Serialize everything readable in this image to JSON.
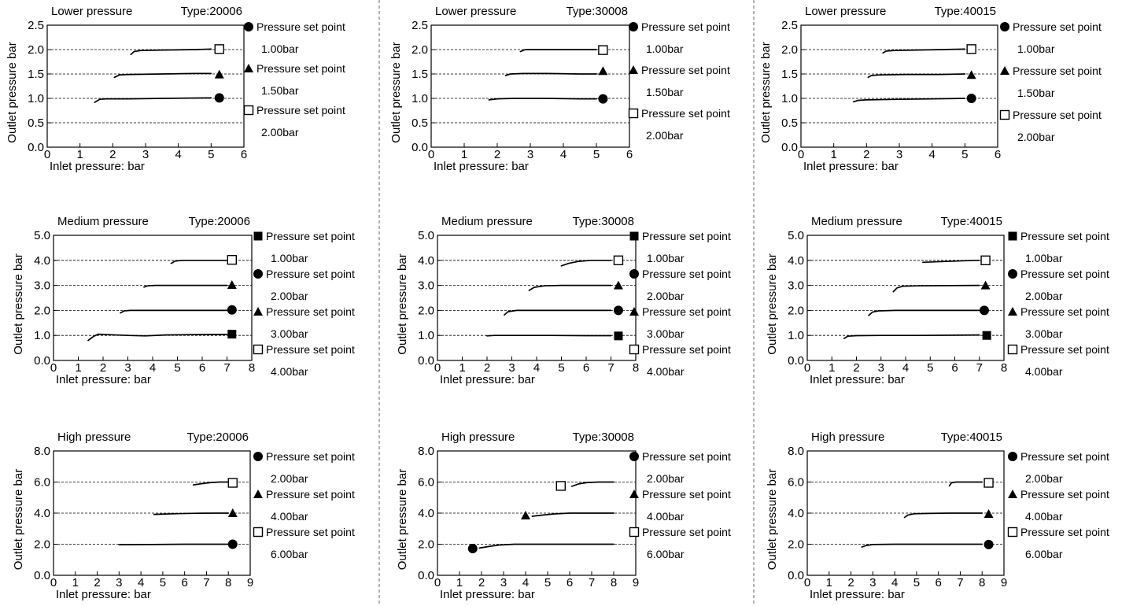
{
  "colors": {
    "line": "#000000",
    "grid": "#000000",
    "background": "#ffffff"
  },
  "chart_data": [
    {
      "type": "line",
      "title": "Lower pressure",
      "subtitle": "Type:20006",
      "xlabel": "Inlet pressure: bar",
      "ylabel": "Outlet pressure  bar",
      "xlim": [
        0,
        6
      ],
      "ylim": [
        0,
        2.5
      ],
      "xticks": [
        "0",
        "1",
        "2",
        "3",
        "4",
        "5",
        "6"
      ],
      "yticks": [
        "0.0",
        "0.5",
        "1.0",
        "1.5",
        "2.0",
        "2.5"
      ],
      "grid": "dashed horizontal at y ticks",
      "legend_placement": "right",
      "series": [
        {
          "name": "Pressure set point",
          "setpoint": "1.00bar",
          "marker": "filled-circle",
          "x": [
            1.45,
            1.6,
            1.8,
            2.5,
            3.5,
            5.0
          ],
          "y": [
            0.92,
            0.98,
            0.99,
            0.99,
            1.0,
            1.01
          ],
          "marker_xy": [
            5.25,
            1.01
          ]
        },
        {
          "name": "Pressure set point",
          "setpoint": "1.50bar",
          "marker": "filled-triangle",
          "x": [
            2.05,
            2.2,
            2.5,
            3.5,
            4.5,
            5.0
          ],
          "y": [
            1.43,
            1.48,
            1.49,
            1.5,
            1.51,
            1.51
          ],
          "marker_xy": [
            5.25,
            1.49
          ]
        },
        {
          "name": "Pressure set point",
          "setpoint": "2.00bar",
          "marker": "open-square",
          "x": [
            2.55,
            2.65,
            2.85,
            3.5,
            4.5,
            5.0
          ],
          "y": [
            1.9,
            1.96,
            1.98,
            1.99,
            2.0,
            2.01
          ],
          "marker_xy": [
            5.25,
            2.01
          ]
        }
      ]
    },
    {
      "type": "line",
      "title": "Lower pressure",
      "subtitle": "Type:30008",
      "xlabel": "Inlet pressure: bar",
      "ylabel": "Outlet pressure  bar",
      "xlim": [
        0,
        6
      ],
      "ylim": [
        0,
        2.5
      ],
      "xticks": [
        "0",
        "1",
        "2",
        "3",
        "4",
        "5",
        "6"
      ],
      "yticks": [
        "0.0",
        "0.5",
        "1.0",
        "1.5",
        "2.0",
        "2.5"
      ],
      "grid": "dashed horizontal at y ticks",
      "legend_placement": "right",
      "series": [
        {
          "name": "Pressure set point",
          "setpoint": "1.00bar",
          "marker": "filled-circle",
          "x": [
            1.75,
            2.0,
            2.5,
            3.5,
            4.5,
            5.0
          ],
          "y": [
            0.97,
            0.99,
            1.0,
            1.0,
            0.99,
            0.99
          ],
          "marker_xy": [
            5.2,
            0.99
          ]
        },
        {
          "name": "Pressure set point",
          "setpoint": "1.50bar",
          "marker": "filled-triangle",
          "x": [
            2.25,
            2.4,
            2.8,
            3.5,
            4.5,
            5.0
          ],
          "y": [
            1.47,
            1.5,
            1.51,
            1.51,
            1.5,
            1.5
          ],
          "marker_xy": [
            5.2,
            1.56
          ]
        },
        {
          "name": "Pressure set point",
          "setpoint": "2.00bar",
          "marker": "open-square",
          "x": [
            2.7,
            2.85,
            3.1,
            3.8,
            4.5,
            5.0
          ],
          "y": [
            1.96,
            2.0,
            2.0,
            2.0,
            2.0,
            2.0
          ],
          "marker_xy": [
            5.2,
            1.99
          ]
        }
      ]
    },
    {
      "type": "line",
      "title": "Lower pressure",
      "subtitle": "Type:40015",
      "xlabel": "Inlet pressure: bar",
      "ylabel": "Outlet pressure  bar",
      "xlim": [
        0,
        6
      ],
      "ylim": [
        0,
        2.5
      ],
      "xticks": [
        "0",
        "1",
        "2",
        "3",
        "4",
        "5",
        "6"
      ],
      "yticks": [
        "0.0",
        "0.5",
        "1.0",
        "1.5",
        "2.0",
        "2.5"
      ],
      "grid": "dashed horizontal at y ticks",
      "legend_placement": "right",
      "series": [
        {
          "name": "Pressure set point",
          "setpoint": "1.00bar",
          "marker": "filled-circle",
          "x": [
            1.6,
            1.75,
            2.0,
            3.0,
            4.0,
            5.0
          ],
          "y": [
            0.93,
            0.96,
            0.97,
            0.98,
            0.99,
            1.0
          ],
          "marker_xy": [
            5.2,
            1.0
          ]
        },
        {
          "name": "Pressure set point",
          "setpoint": "1.50bar",
          "marker": "filled-triangle",
          "x": [
            2.05,
            2.15,
            2.4,
            3.2,
            4.2,
            5.0
          ],
          "y": [
            1.43,
            1.47,
            1.48,
            1.49,
            1.49,
            1.5
          ],
          "marker_xy": [
            5.2,
            1.48
          ]
        },
        {
          "name": "Pressure set point",
          "setpoint": "2.00bar",
          "marker": "open-square",
          "x": [
            2.5,
            2.6,
            2.85,
            3.5,
            4.3,
            5.0
          ],
          "y": [
            1.93,
            1.97,
            1.98,
            1.99,
            2.0,
            2.01
          ],
          "marker_xy": [
            5.2,
            2.01
          ]
        }
      ]
    },
    {
      "type": "line",
      "title": "Medium pressure",
      "subtitle": "Type:20006",
      "xlabel": "Inlet pressure: bar",
      "ylabel": "Outlet pressure  bar",
      "xlim": [
        0,
        8
      ],
      "ylim": [
        0,
        5.0
      ],
      "xticks": [
        "0",
        "1",
        "2",
        "3",
        "4",
        "5",
        "6",
        "7",
        "8"
      ],
      "yticks": [
        "0.0",
        "1.0",
        "2.0",
        "3.0",
        "4.0",
        "5.0"
      ],
      "grid": "dashed horizontal at y ticks",
      "legend_placement": "right",
      "series": [
        {
          "name": "Pressure set point",
          "setpoint": "1.00bar",
          "marker": "filled-square",
          "x": [
            1.4,
            1.6,
            1.8,
            2.2,
            3.0,
            3.7,
            4.5,
            5.5,
            7.0
          ],
          "y": [
            0.8,
            0.95,
            1.05,
            1.03,
            1.0,
            0.98,
            1.02,
            1.03,
            1.04
          ],
          "marker_xy": [
            7.2,
            1.05
          ]
        },
        {
          "name": "Pressure set point",
          "setpoint": "2.00bar",
          "marker": "filled-circle",
          "x": [
            2.7,
            2.85,
            3.1,
            4.0,
            5.5,
            7.0
          ],
          "y": [
            1.9,
            1.98,
            2.0,
            2.0,
            2.0,
            2.0
          ],
          "marker_xy": [
            7.2,
            2.02
          ]
        },
        {
          "name": "Pressure set point",
          "setpoint": "3.00bar",
          "marker": "filled-triangle",
          "x": [
            3.65,
            3.8,
            4.1,
            5.0,
            6.0,
            7.0
          ],
          "y": [
            2.93,
            2.98,
            3.0,
            3.0,
            3.0,
            3.0
          ],
          "marker_xy": [
            7.2,
            3.02
          ]
        },
        {
          "name": "Pressure set point",
          "setpoint": "4.00bar",
          "marker": "open-square",
          "x": [
            4.75,
            4.9,
            5.2,
            5.8,
            6.5,
            7.0
          ],
          "y": [
            3.88,
            3.97,
            4.0,
            4.0,
            4.0,
            4.0
          ],
          "marker_xy": [
            7.2,
            4.02
          ]
        }
      ]
    },
    {
      "type": "line",
      "title": "Medium pressure",
      "subtitle": "Type:30008",
      "xlabel": "Inlet pressure: bar",
      "ylabel": "Outlet pressure  bar",
      "xlim": [
        0,
        8
      ],
      "ylim": [
        0,
        5.0
      ],
      "xticks": [
        "0",
        "1",
        "2",
        "3",
        "4",
        "5",
        "6",
        "7",
        "8"
      ],
      "yticks": [
        "0.0",
        "1.0",
        "2.0",
        "3.0",
        "4.0",
        "5.0"
      ],
      "grid": "dashed horizontal at y ticks",
      "legend_placement": "right",
      "series": [
        {
          "name": "Pressure set point",
          "setpoint": "1.00bar",
          "marker": "filled-square",
          "x": [
            2.0,
            2.3,
            3.0,
            4.5,
            6.0,
            7.0
          ],
          "y": [
            0.98,
            1.0,
            1.0,
            1.0,
            0.99,
            0.99
          ],
          "marker_xy": [
            7.3,
            0.98
          ]
        },
        {
          "name": "Pressure set point",
          "setpoint": "2.00bar",
          "marker": "filled-circle",
          "x": [
            2.7,
            2.85,
            3.2,
            4.0,
            5.5,
            7.0
          ],
          "y": [
            1.82,
            1.95,
            2.0,
            2.0,
            2.0,
            2.0
          ],
          "marker_xy": [
            7.3,
            2.0
          ]
        },
        {
          "name": "Pressure set point",
          "setpoint": "3.00bar",
          "marker": "filled-triangle",
          "x": [
            3.7,
            3.9,
            4.3,
            5.0,
            6.0,
            7.0
          ],
          "y": [
            2.8,
            2.92,
            2.98,
            3.0,
            3.0,
            3.0
          ],
          "marker_xy": [
            7.3,
            3.0
          ]
        },
        {
          "name": "Pressure set point",
          "setpoint": "4.00bar",
          "marker": "open-square",
          "x": [
            5.0,
            5.3,
            5.7,
            6.2,
            6.6,
            7.0
          ],
          "y": [
            3.78,
            3.88,
            3.96,
            4.0,
            4.0,
            4.0
          ],
          "marker_xy": [
            7.3,
            4.0
          ]
        }
      ]
    },
    {
      "type": "line",
      "title": "Medium pressure",
      "subtitle": "Type:40015",
      "xlabel": "Inlet pressure: bar",
      "ylabel": "Outlet pressure  bar",
      "xlim": [
        0,
        8
      ],
      "ylim": [
        0,
        5.0
      ],
      "xticks": [
        "0",
        "1",
        "2",
        "3",
        "4",
        "5",
        "6",
        "7",
        "8"
      ],
      "yticks": [
        "0.0",
        "1.0",
        "2.0",
        "3.0",
        "4.0",
        "5.0"
      ],
      "grid": "dashed horizontal at y ticks",
      "legend_placement": "right",
      "series": [
        {
          "name": "Pressure set point",
          "setpoint": "1.00bar",
          "marker": "filled-square",
          "x": [
            1.5,
            1.65,
            2.0,
            3.0,
            4.5,
            6.0,
            7.0
          ],
          "y": [
            0.88,
            0.97,
            0.99,
            1.0,
            1.0,
            1.01,
            1.02
          ],
          "marker_xy": [
            7.3,
            1.0
          ]
        },
        {
          "name": "Pressure set point",
          "setpoint": "2.00bar",
          "marker": "filled-circle",
          "x": [
            2.5,
            2.65,
            2.9,
            3.6,
            5.0,
            7.0
          ],
          "y": [
            1.8,
            1.93,
            1.98,
            2.0,
            2.0,
            2.0
          ],
          "marker_xy": [
            7.2,
            2.0
          ]
        },
        {
          "name": "Pressure set point",
          "setpoint": "3.00bar",
          "marker": "filled-triangle",
          "x": [
            3.5,
            3.65,
            3.9,
            4.5,
            5.8,
            7.0
          ],
          "y": [
            2.75,
            2.9,
            2.97,
            2.98,
            2.99,
            3.0
          ],
          "marker_xy": [
            7.25,
            3.0
          ]
        },
        {
          "name": "Pressure set point",
          "setpoint": "4.00bar",
          "marker": "open-square",
          "x": [
            4.7,
            5.2,
            6.0,
            6.8,
            7.0
          ],
          "y": [
            3.92,
            3.94,
            3.97,
            4.0,
            4.0
          ],
          "marker_xy": [
            7.25,
            4.0
          ]
        }
      ]
    },
    {
      "type": "line",
      "title": "High pressure",
      "subtitle": "Type:20006",
      "xlabel": "Inlet pressure: bar",
      "ylabel": "Outlet pressure  bar",
      "xlim": [
        0,
        9
      ],
      "ylim": [
        0,
        8.0
      ],
      "xticks": [
        "0",
        "1",
        "2",
        "3",
        "4",
        "5",
        "6",
        "7",
        "8",
        "9"
      ],
      "yticks": [
        "0.0",
        "2.0",
        "4.0",
        "6.0",
        "8.0"
      ],
      "grid": "dashed horizontal at y ticks",
      "legend_placement": "right",
      "series": [
        {
          "name": "Pressure set point",
          "setpoint": "2.00bar",
          "marker": "filled-circle",
          "x": [
            3.0,
            4.5,
            6.0,
            7.0,
            8.0
          ],
          "y": [
            1.97,
            1.98,
            2.0,
            2.0,
            2.0
          ],
          "marker_xy": [
            8.2,
            2.0
          ]
        },
        {
          "name": "Pressure set point",
          "setpoint": "4.00bar",
          "marker": "filled-triangle",
          "x": [
            4.6,
            5.5,
            6.5,
            7.5,
            8.0
          ],
          "y": [
            3.92,
            3.96,
            3.99,
            4.0,
            4.0
          ],
          "marker_xy": [
            8.2,
            4.0
          ]
        },
        {
          "name": "Pressure set point",
          "setpoint": "6.00bar",
          "marker": "open-square",
          "x": [
            6.4,
            6.8,
            7.2,
            7.6,
            8.0
          ],
          "y": [
            5.82,
            5.9,
            5.97,
            6.0,
            6.0
          ],
          "marker_xy": [
            8.2,
            5.95
          ]
        }
      ]
    },
    {
      "type": "line",
      "title": "High pressure",
      "subtitle": "Type:30008",
      "xlabel": "Inlet pressure: bar",
      "ylabel": "Outlet pressure  bar",
      "xlim": [
        0,
        9
      ],
      "ylim": [
        0,
        8.0
      ],
      "xticks": [
        "0",
        "1",
        "2",
        "3",
        "4",
        "5",
        "6",
        "7",
        "8",
        "9"
      ],
      "yticks": [
        "0.0",
        "2.0",
        "4.0",
        "6.0",
        "8.0"
      ],
      "grid": "dashed horizontal at y ticks",
      "legend_placement": "right",
      "series": [
        {
          "name": "Pressure set point",
          "setpoint": "2.00bar",
          "marker": "filled-circle",
          "x": [
            1.9,
            2.3,
            2.8,
            3.5,
            5.0,
            8.0
          ],
          "y": [
            1.75,
            1.85,
            1.95,
            2.0,
            2.0,
            2.0
          ],
          "marker_xy": [
            1.6,
            1.72
          ]
        },
        {
          "name": "Pressure set point",
          "setpoint": "4.00bar",
          "marker": "filled-triangle",
          "x": [
            4.3,
            4.8,
            5.3,
            6.0,
            7.0,
            8.0
          ],
          "y": [
            3.8,
            3.88,
            3.95,
            4.0,
            4.0,
            4.0
          ],
          "marker_xy": [
            4.0,
            3.85
          ]
        },
        {
          "name": "Pressure set point",
          "setpoint": "6.00bar",
          "marker": "open-square",
          "x": [
            6.1,
            6.4,
            6.8,
            7.3,
            8.0
          ],
          "y": [
            5.72,
            5.88,
            5.97,
            6.0,
            6.0
          ],
          "marker_xy": [
            5.6,
            5.75
          ]
        }
      ]
    },
    {
      "type": "line",
      "title": "High pressure",
      "subtitle": "Type:40015",
      "xlabel": "Inlet pressure: bar",
      "ylabel": "Outlet pressure  bar",
      "xlim": [
        0,
        9
      ],
      "ylim": [
        0,
        8.0
      ],
      "xticks": [
        "0",
        "1",
        "2",
        "3",
        "4",
        "5",
        "6",
        "7",
        "8",
        "9"
      ],
      "yticks": [
        "0.0",
        "2.0",
        "4.0",
        "6.0",
        "8.0"
      ],
      "grid": "dashed horizontal at y ticks",
      "legend_placement": "right",
      "series": [
        {
          "name": "Pressure set point",
          "setpoint": "2.00bar",
          "marker": "filled-circle",
          "x": [
            2.5,
            2.7,
            3.0,
            4.0,
            6.0,
            8.0
          ],
          "y": [
            1.82,
            1.92,
            1.98,
            2.0,
            2.0,
            2.0
          ],
          "marker_xy": [
            8.3,
            1.98
          ]
        },
        {
          "name": "Pressure set point",
          "setpoint": "4.00bar",
          "marker": "filled-triangle",
          "x": [
            4.45,
            4.6,
            4.9,
            5.5,
            6.5,
            8.0
          ],
          "y": [
            3.72,
            3.88,
            3.96,
            3.98,
            4.0,
            4.0
          ],
          "marker_xy": [
            8.3,
            3.95
          ]
        },
        {
          "name": "Pressure set point",
          "setpoint": "6.00bar",
          "marker": "open-square",
          "x": [
            6.5,
            6.6,
            6.8,
            7.3,
            8.0
          ],
          "y": [
            5.75,
            5.95,
            6.0,
            6.0,
            6.0
          ],
          "marker_xy": [
            8.3,
            5.95
          ]
        }
      ]
    }
  ]
}
